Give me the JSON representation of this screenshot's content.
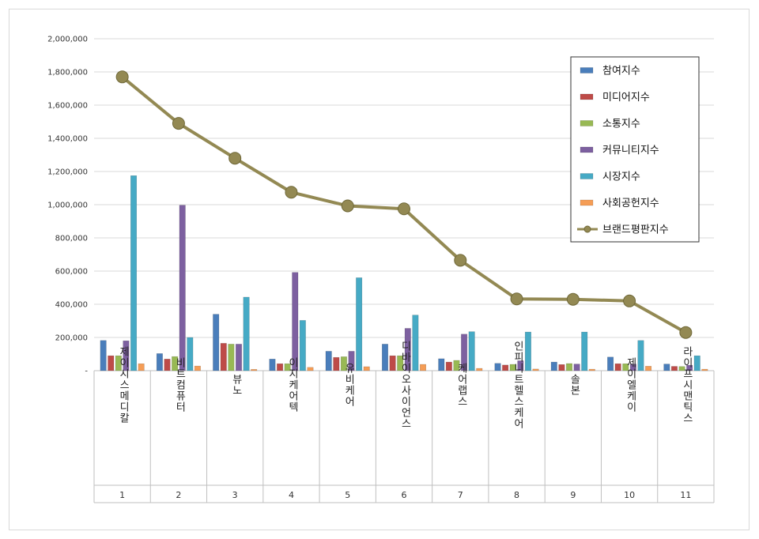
{
  "chart_data": {
    "type": "bar",
    "title": "",
    "xlabel": "",
    "ylabel": "",
    "ylim": [
      0,
      2000000
    ],
    "yticks": [
      0,
      200000,
      400000,
      600000,
      800000,
      1000000,
      1200000,
      1400000,
      1600000,
      1800000,
      2000000
    ],
    "ytick_labels": [
      "-",
      "200,000",
      "400,000",
      "600,000",
      "800,000",
      "1,000,000",
      "1,200,000",
      "1,400,000",
      "1,600,000",
      "1,800,000",
      "2,000,000"
    ],
    "grid": true,
    "legend_position": "top-right",
    "categories": [
      "제이시스메디칼",
      "비트컴퓨터",
      "뷰노",
      "이지케어텍",
      "유비케어",
      "디바이오사이언스",
      "케어랩스",
      "인피니트헬스케어",
      "솔본",
      "제이엘케이",
      "라이프시맨틱스"
    ],
    "ranks": [
      "1",
      "2",
      "3",
      "4",
      "5",
      "6",
      "7",
      "8",
      "9",
      "10",
      "11"
    ],
    "series": [
      {
        "name": "참여지수",
        "kind": "bar",
        "color": "#4a7ebb",
        "values": [
          182000,
          103000,
          340000,
          70000,
          117000,
          160000,
          72000,
          44000,
          52000,
          82000,
          40000
        ]
      },
      {
        "name": "미디어지수",
        "kind": "bar",
        "color": "#be4b48",
        "values": [
          90000,
          70000,
          165000,
          42000,
          80000,
          90000,
          52000,
          34000,
          37000,
          42000,
          26000
        ]
      },
      {
        "name": "소통지수",
        "kind": "bar",
        "color": "#98b954",
        "values": [
          90000,
          85000,
          160000,
          42000,
          84000,
          90000,
          62000,
          38000,
          43000,
          42000,
          25000
        ]
      },
      {
        "name": "커뮤니티지수",
        "kind": "bar",
        "color": "#7d60a0",
        "values": [
          180000,
          997000,
          160000,
          592000,
          117000,
          255000,
          220000,
          60000,
          40000,
          40000,
          33000
        ]
      },
      {
        "name": "시장지수",
        "kind": "bar",
        "color": "#46aac5",
        "values": [
          1175000,
          200000,
          443000,
          303000,
          560000,
          335000,
          235000,
          233000,
          233000,
          182000,
          90000
        ]
      },
      {
        "name": "사회공헌지수",
        "kind": "bar",
        "color": "#f59d56",
        "values": [
          42000,
          28000,
          8000,
          20000,
          24000,
          38000,
          14000,
          10000,
          9000,
          27000,
          9000
        ]
      },
      {
        "name": "브랜드평판지수",
        "kind": "line",
        "color": "#938953",
        "values": [
          1770000,
          1490000,
          1280000,
          1075000,
          993000,
          975000,
          665000,
          432000,
          430000,
          420000,
          230000
        ]
      }
    ]
  }
}
